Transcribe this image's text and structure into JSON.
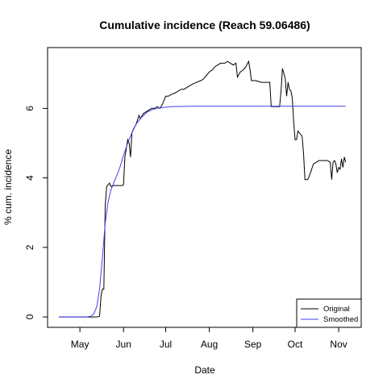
{
  "chart_data": {
    "type": "line",
    "title": "Cumulative incidence (Reach 59.06486)",
    "xlabel": "Date",
    "ylabel": "% cum. incidence",
    "x_ticks": [
      {
        "label": "May",
        "date": "2016-05-01"
      },
      {
        "label": "Jun",
        "date": "2016-06-01"
      },
      {
        "label": "Jul",
        "date": "2016-07-01"
      },
      {
        "label": "Aug",
        "date": "2016-08-01"
      },
      {
        "label": "Sep",
        "date": "2016-09-01"
      },
      {
        "label": "Oct",
        "date": "2016-10-01"
      },
      {
        "label": "Nov",
        "date": "2016-11-01"
      }
    ],
    "y_ticks": [
      0,
      2,
      4,
      6
    ],
    "xlim": [
      "2016-04-08",
      "2016-11-17"
    ],
    "ylim": [
      -0.3,
      7.75
    ],
    "grid": false,
    "legend": {
      "position": "bottom-right",
      "entries": [
        "Original",
        "Smoothed"
      ]
    },
    "series": [
      {
        "name": "Original",
        "color": "#000000",
        "points": [
          [
            "2016-04-16",
            0.0
          ],
          [
            "2016-04-26",
            0.0
          ],
          [
            "2016-05-05",
            0.0
          ],
          [
            "2016-05-13",
            0.0
          ],
          [
            "2016-05-15",
            0.02
          ],
          [
            "2016-05-16",
            0.6
          ],
          [
            "2016-05-17",
            0.8
          ],
          [
            "2016-05-18",
            0.8
          ],
          [
            "2016-05-19",
            3.2
          ],
          [
            "2016-05-20",
            3.75
          ],
          [
            "2016-05-21",
            3.8
          ],
          [
            "2016-05-22",
            3.85
          ],
          [
            "2016-05-23",
            3.75
          ],
          [
            "2016-05-25",
            3.78
          ],
          [
            "2016-05-28",
            3.78
          ],
          [
            "2016-05-31",
            3.78
          ],
          [
            "2016-06-01",
            3.8
          ],
          [
            "2016-06-02",
            4.6
          ],
          [
            "2016-06-03",
            4.85
          ],
          [
            "2016-06-04",
            5.1
          ],
          [
            "2016-06-05",
            5.0
          ],
          [
            "2016-06-06",
            4.6
          ],
          [
            "2016-06-07",
            5.3
          ],
          [
            "2016-06-08",
            5.4
          ],
          [
            "2016-06-10",
            5.55
          ],
          [
            "2016-06-12",
            5.8
          ],
          [
            "2016-06-13",
            5.7
          ],
          [
            "2016-06-15",
            5.85
          ],
          [
            "2016-06-17",
            5.9
          ],
          [
            "2016-06-19",
            5.95
          ],
          [
            "2016-06-21",
            6.0
          ],
          [
            "2016-06-23",
            6.0
          ],
          [
            "2016-06-25",
            6.05
          ],
          [
            "2016-06-27",
            6.0
          ],
          [
            "2016-06-29",
            6.15
          ],
          [
            "2016-07-01",
            6.35
          ],
          [
            "2016-07-03",
            6.35
          ],
          [
            "2016-07-05",
            6.4
          ],
          [
            "2016-07-08",
            6.45
          ],
          [
            "2016-07-10",
            6.5
          ],
          [
            "2016-07-12",
            6.55
          ],
          [
            "2016-07-14",
            6.55
          ],
          [
            "2016-07-16",
            6.6
          ],
          [
            "2016-07-18",
            6.65
          ],
          [
            "2016-07-20",
            6.7
          ],
          [
            "2016-07-23",
            6.75
          ],
          [
            "2016-07-26",
            6.8
          ],
          [
            "2016-07-28",
            6.85
          ],
          [
            "2016-07-30",
            6.95
          ],
          [
            "2016-08-01",
            7.05
          ],
          [
            "2016-08-03",
            7.1
          ],
          [
            "2016-08-05",
            7.2
          ],
          [
            "2016-08-07",
            7.25
          ],
          [
            "2016-08-09",
            7.3
          ],
          [
            "2016-08-12",
            7.3
          ],
          [
            "2016-08-14",
            7.35
          ],
          [
            "2016-08-16",
            7.3
          ],
          [
            "2016-08-18",
            7.25
          ],
          [
            "2016-08-20",
            7.3
          ],
          [
            "2016-08-21",
            6.9
          ],
          [
            "2016-08-23",
            7.05
          ],
          [
            "2016-08-25",
            7.1
          ],
          [
            "2016-08-27",
            7.2
          ],
          [
            "2016-08-29",
            7.35
          ],
          [
            "2016-08-30",
            7.1
          ],
          [
            "2016-08-31",
            6.8
          ],
          [
            "2016-09-03",
            6.8
          ],
          [
            "2016-09-07",
            6.75
          ],
          [
            "2016-09-11",
            6.75
          ],
          [
            "2016-09-13",
            6.75
          ],
          [
            "2016-09-14",
            6.05
          ],
          [
            "2016-09-18",
            6.05
          ],
          [
            "2016-09-20",
            6.05
          ],
          [
            "2016-09-21",
            6.5
          ],
          [
            "2016-09-22",
            7.15
          ],
          [
            "2016-09-23",
            7.0
          ],
          [
            "2016-09-24",
            6.85
          ],
          [
            "2016-09-25",
            6.35
          ],
          [
            "2016-09-26",
            6.75
          ],
          [
            "2016-09-27",
            6.55
          ],
          [
            "2016-09-28",
            6.5
          ],
          [
            "2016-09-29",
            6.3
          ],
          [
            "2016-09-30",
            5.6
          ],
          [
            "2016-10-01",
            5.1
          ],
          [
            "2016-10-02",
            5.1
          ],
          [
            "2016-10-03",
            5.35
          ],
          [
            "2016-10-05",
            5.25
          ],
          [
            "2016-10-06",
            5.2
          ],
          [
            "2016-10-07",
            4.7
          ],
          [
            "2016-10-08",
            3.95
          ],
          [
            "2016-10-10",
            3.95
          ],
          [
            "2016-10-12",
            4.15
          ],
          [
            "2016-10-14",
            4.4
          ],
          [
            "2016-10-16",
            4.45
          ],
          [
            "2016-10-18",
            4.5
          ],
          [
            "2016-10-20",
            4.5
          ],
          [
            "2016-10-22",
            4.5
          ],
          [
            "2016-10-24",
            4.5
          ],
          [
            "2016-10-26",
            4.45
          ],
          [
            "2016-10-27",
            3.95
          ],
          [
            "2016-10-28",
            4.45
          ],
          [
            "2016-10-29",
            4.5
          ],
          [
            "2016-10-30",
            4.4
          ],
          [
            "2016-10-31",
            4.15
          ],
          [
            "2016-11-01",
            4.3
          ],
          [
            "2016-11-02",
            4.25
          ],
          [
            "2016-11-03",
            4.55
          ],
          [
            "2016-11-04",
            4.3
          ],
          [
            "2016-11-05",
            4.6
          ],
          [
            "2016-11-06",
            4.45
          ]
        ]
      },
      {
        "name": "Smoothed",
        "color": "#4040ee",
        "points": [
          [
            "2016-04-16",
            0.0
          ],
          [
            "2016-04-26",
            0.0
          ],
          [
            "2016-05-05",
            0.0
          ],
          [
            "2016-05-09",
            0.02
          ],
          [
            "2016-05-11",
            0.1
          ],
          [
            "2016-05-13",
            0.3
          ],
          [
            "2016-05-15",
            0.8
          ],
          [
            "2016-05-17",
            1.7
          ],
          [
            "2016-05-19",
            2.7
          ],
          [
            "2016-05-21",
            3.3
          ],
          [
            "2016-05-23",
            3.65
          ],
          [
            "2016-05-26",
            3.95
          ],
          [
            "2016-05-29",
            4.25
          ],
          [
            "2016-06-01",
            4.65
          ],
          [
            "2016-06-04",
            5.0
          ],
          [
            "2016-06-07",
            5.3
          ],
          [
            "2016-06-10",
            5.55
          ],
          [
            "2016-06-14",
            5.75
          ],
          [
            "2016-06-18",
            5.9
          ],
          [
            "2016-06-22",
            5.97
          ],
          [
            "2016-06-27",
            6.02
          ],
          [
            "2016-07-05",
            6.05
          ],
          [
            "2016-07-20",
            6.06
          ],
          [
            "2016-08-15",
            6.06
          ],
          [
            "2016-09-15",
            6.06
          ],
          [
            "2016-10-15",
            6.06
          ],
          [
            "2016-11-06",
            6.06
          ]
        ]
      }
    ]
  }
}
